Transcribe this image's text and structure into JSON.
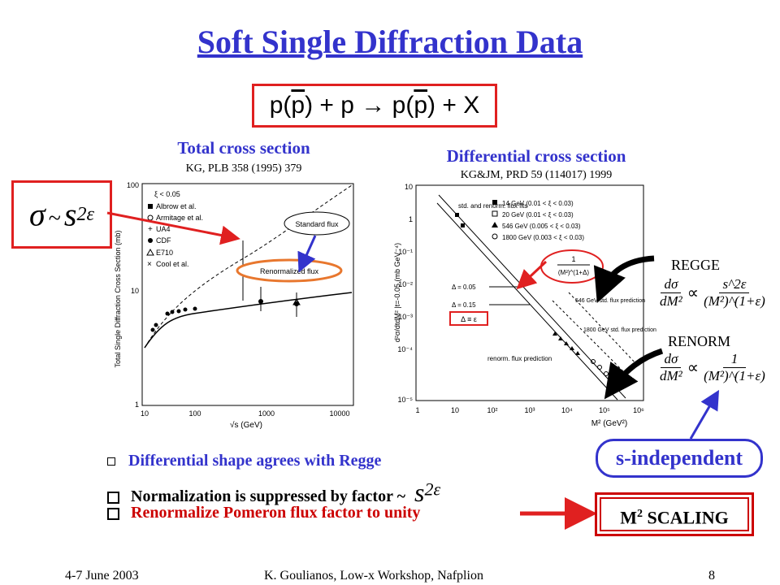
{
  "title": "Soft Single Diffraction Data",
  "reaction": {
    "lhs1": "p(",
    "pbar": "p",
    "rhs1": ") + p",
    "arrow": "→",
    "rhs2": "p(",
    "pbar2": "p",
    "rhs3": ") + X"
  },
  "left_plot": {
    "caption": "Total cross section",
    "reference": "KG, PLB 358 (1995) 379",
    "ylabel": "Total Single Diffraction Cross Section (mb)",
    "xlabel": "√s (GeV)",
    "yticks": [
      "100",
      "10",
      "1"
    ],
    "xticks": [
      "10",
      "100",
      "1000",
      "10000"
    ],
    "legend": [
      "ξ < 0.05",
      "Albrow et al.",
      "Armitage et al.",
      "UA4",
      "CDF",
      "E710",
      "Cool et al."
    ],
    "standard_flux": "Standard flux",
    "renormalized_flux": "Renormalized flux"
  },
  "sigma_formula": {
    "sigma": "σ",
    "sim": "~",
    "s": "s",
    "exp": "2ε"
  },
  "right_plot": {
    "caption": "Differential cross section",
    "reference": "KG&JM, PRD 59 (114017) 1999",
    "ylabel": "d²σ/dtdM² |t=-0.05 (mb GeV⁻⁴)",
    "xlabel": "M² (GeV²)",
    "yticks": [
      "10",
      "1",
      "10⁻¹",
      "10⁻²",
      "10⁻³",
      "10⁻⁴",
      "10⁻⁵"
    ],
    "xticks": [
      "1",
      "10",
      "10²",
      "10³",
      "10⁴",
      "10⁵",
      "10⁶"
    ],
    "legend_title": "std. and renorm. flux fits",
    "legend": [
      "14 GeV (0.01 < ξ < 0.03)",
      "20 GeV (0.01 < ξ < 0.03)",
      "546 GeV (0.005 < ξ < 0.03)",
      "1800 GeV (0.003 < ξ < 0.03)"
    ],
    "delta1": "Δ = 0.05",
    "delta2": "Δ = 0.15",
    "delta_eq": "Δ ≡ ε",
    "pred546": "546 GeV std. flux prediction",
    "pred1800": "1800 GeV std. flux prediction",
    "renorm_pred": "renorm. flux prediction",
    "inset_num": "1",
    "inset_den": "(M²)^(1+Δ)"
  },
  "regge": {
    "label": "REGGE",
    "num": "dσ",
    "den": "dM²",
    "prop": "∝",
    "rnum": "s^2ε",
    "rden": "(M²)^(1+ε)"
  },
  "renorm": {
    "label": "RENORM",
    "num": "dσ",
    "den": "dM²",
    "prop": "∝",
    "rnum": "1",
    "rden": "(M²)^(1+ε)"
  },
  "s_independent": "s-independent",
  "bullets": [
    "Differential shape agrees with Regge",
    "Normalization is suppressed by factor ~",
    "Renormalize Pomeron flux factor to unity"
  ],
  "factor": {
    "s": "s",
    "exp": "2ε"
  },
  "m2_scaling": "SCALING",
  "m2_label": "M",
  "m2_sup": "2",
  "footer": {
    "date": "4-7 June 2003",
    "author": "K. Goulianos, Low-x Workshop, Nafplion",
    "page": "8"
  },
  "colors": {
    "blue": "#3333cc",
    "red": "#cc0000",
    "orange": "#e8772e"
  }
}
